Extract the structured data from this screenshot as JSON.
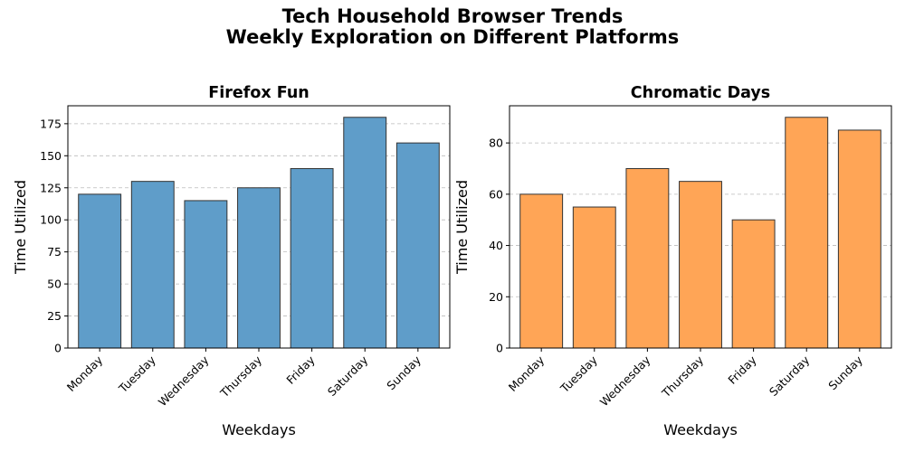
{
  "figure": {
    "title_line1": "Tech Household Browser Trends",
    "title_line2": "Weekly Exploration on Different Platforms"
  },
  "chart_data": [
    {
      "type": "bar",
      "title": "Firefox Fun",
      "xlabel": "Weekdays",
      "ylabel": "Time Utilized",
      "categories": [
        "Monday",
        "Tuesday",
        "Wednesday",
        "Thursday",
        "Friday",
        "Saturday",
        "Sunday"
      ],
      "values": [
        120,
        130,
        115,
        125,
        140,
        180,
        160
      ],
      "ylim": [
        0,
        189
      ],
      "yticks": [
        0,
        25,
        50,
        75,
        100,
        125,
        150,
        175
      ],
      "color": "#5f9dc9",
      "edge_color": "#333333",
      "grid": "y-dashed"
    },
    {
      "type": "bar",
      "title": "Chromatic Days",
      "xlabel": "Weekdays",
      "ylabel": "Time Utilized",
      "categories": [
        "Monday",
        "Tuesday",
        "Wednesday",
        "Thursday",
        "Friday",
        "Saturday",
        "Sunday"
      ],
      "values": [
        60,
        55,
        70,
        65,
        50,
        90,
        85
      ],
      "ylim": [
        0,
        94.5
      ],
      "yticks": [
        0,
        20,
        40,
        60,
        80
      ],
      "color": "#ffa556",
      "edge_color": "#333333",
      "grid": "y-dashed"
    }
  ]
}
